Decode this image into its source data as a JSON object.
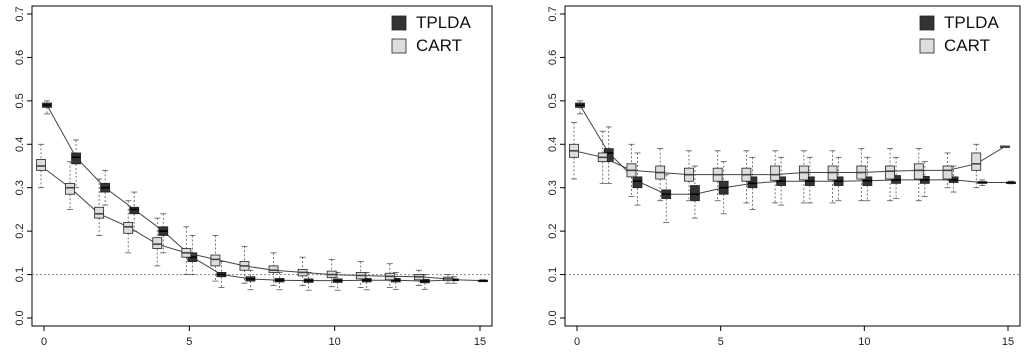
{
  "colors": {
    "tplda": "#333333",
    "cart": "#dddddd",
    "line": "#444444",
    "reference": "#888888"
  },
  "chart_data": [
    {
      "type": "boxplot",
      "title": "",
      "xlabel": "",
      "ylabel": "",
      "xlim": [
        0,
        15
      ],
      "ylim": [
        0,
        0.7
      ],
      "x_ticks": [
        "0",
        "5",
        "10",
        "15"
      ],
      "y_ticks": [
        "0.0",
        "0.1",
        "0.2",
        "0.3",
        "0.4",
        "0.5",
        "0.6",
        "0.7"
      ],
      "reference_line_y": 0.1,
      "grid": false,
      "legend": {
        "position": "top-right",
        "entries": [
          "TPLDA",
          "CART"
        ]
      },
      "series": [
        {
          "name": "TPLDA",
          "x": [
            0,
            1,
            2,
            3,
            4,
            5,
            6,
            7,
            8,
            9,
            10,
            11,
            12,
            13,
            14,
            15
          ],
          "median": [
            0.49,
            0.37,
            0.3,
            0.25,
            0.2,
            0.14,
            0.1,
            0.09,
            0.087,
            0.086,
            0.086,
            0.087,
            0.087,
            0.085,
            0.088,
            0.086
          ],
          "q1": [
            0.485,
            0.355,
            0.29,
            0.24,
            0.19,
            0.13,
            0.095,
            0.085,
            0.083,
            0.082,
            0.082,
            0.083,
            0.083,
            0.081,
            0.086,
            0.085
          ],
          "q3": [
            0.495,
            0.38,
            0.31,
            0.255,
            0.21,
            0.15,
            0.105,
            0.095,
            0.091,
            0.09,
            0.09,
            0.091,
            0.091,
            0.089,
            0.09,
            0.087
          ],
          "min": [
            0.47,
            0.3,
            0.26,
            0.2,
            0.15,
            0.1,
            0.07,
            0.065,
            0.065,
            0.064,
            0.064,
            0.065,
            0.066,
            0.066,
            0.08,
            0.085
          ],
          "max": [
            0.5,
            0.41,
            0.34,
            0.29,
            0.24,
            0.19,
            0.13,
            0.11,
            0.105,
            0.105,
            0.105,
            0.105,
            0.105,
            0.1,
            0.095,
            0.088
          ]
        },
        {
          "name": "CART",
          "x": [
            0,
            1,
            2,
            3,
            4,
            5,
            6,
            7,
            8,
            9,
            10,
            11,
            12,
            13,
            14
          ],
          "median": [
            0.35,
            0.3,
            0.24,
            0.21,
            0.17,
            0.15,
            0.135,
            0.12,
            0.11,
            0.105,
            0.1,
            0.098,
            0.096,
            0.095,
            0.09
          ],
          "q1": [
            0.34,
            0.285,
            0.23,
            0.195,
            0.16,
            0.14,
            0.12,
            0.11,
            0.105,
            0.097,
            0.093,
            0.09,
            0.088,
            0.088,
            0.086
          ],
          "q3": [
            0.365,
            0.31,
            0.255,
            0.22,
            0.185,
            0.16,
            0.145,
            0.13,
            0.12,
            0.112,
            0.108,
            0.105,
            0.103,
            0.1,
            0.094
          ],
          "min": [
            0.3,
            0.25,
            0.19,
            0.15,
            0.12,
            0.1,
            0.085,
            0.08,
            0.075,
            0.075,
            0.072,
            0.07,
            0.07,
            0.075,
            0.08
          ],
          "max": [
            0.4,
            0.36,
            0.32,
            0.27,
            0.23,
            0.21,
            0.19,
            0.165,
            0.15,
            0.14,
            0.135,
            0.13,
            0.125,
            0.11,
            0.1
          ]
        }
      ]
    },
    {
      "type": "boxplot",
      "title": "",
      "xlabel": "",
      "ylabel": "",
      "xlim": [
        0,
        15
      ],
      "ylim": [
        0,
        0.7
      ],
      "x_ticks": [
        "0",
        "5",
        "10",
        "15"
      ],
      "y_ticks": [
        "0.0",
        "0.1",
        "0.2",
        "0.3",
        "0.4",
        "0.5",
        "0.6",
        "0.7"
      ],
      "reference_line_y": 0.1,
      "grid": false,
      "legend": {
        "position": "top-right",
        "entries": [
          "TPLDA",
          "CART"
        ]
      },
      "series": [
        {
          "name": "TPLDA",
          "x": [
            0,
            1,
            2,
            3,
            4,
            5,
            6,
            7,
            8,
            9,
            10,
            11,
            12,
            13,
            14,
            15
          ],
          "median": [
            0.49,
            0.38,
            0.315,
            0.285,
            0.285,
            0.3,
            0.31,
            0.315,
            0.315,
            0.315,
            0.316,
            0.318,
            0.318,
            0.318,
            0.312,
            0.312
          ],
          "q1": [
            0.485,
            0.36,
            0.3,
            0.275,
            0.27,
            0.285,
            0.3,
            0.305,
            0.305,
            0.305,
            0.305,
            0.31,
            0.31,
            0.312,
            0.31,
            0.311
          ],
          "q3": [
            0.495,
            0.39,
            0.325,
            0.295,
            0.305,
            0.315,
            0.325,
            0.325,
            0.325,
            0.325,
            0.325,
            0.328,
            0.326,
            0.325,
            0.314,
            0.313
          ],
          "min": [
            0.47,
            0.31,
            0.26,
            0.22,
            0.23,
            0.24,
            0.25,
            0.26,
            0.265,
            0.27,
            0.27,
            0.275,
            0.28,
            0.29,
            0.305,
            0.309
          ],
          "max": [
            0.5,
            0.44,
            0.38,
            0.33,
            0.35,
            0.36,
            0.37,
            0.37,
            0.37,
            0.37,
            0.37,
            0.37,
            0.36,
            0.35,
            0.318,
            0.315
          ]
        },
        {
          "name": "CART",
          "x": [
            0,
            1,
            2,
            3,
            4,
            5,
            6,
            7,
            8,
            9,
            10,
            11,
            12,
            13,
            14,
            15
          ],
          "median": [
            0.385,
            0.37,
            0.34,
            0.335,
            0.33,
            0.33,
            0.33,
            0.33,
            0.335,
            0.335,
            0.335,
            0.338,
            0.34,
            0.34,
            0.355,
            0.395
          ],
          "q1": [
            0.37,
            0.36,
            0.325,
            0.32,
            0.315,
            0.315,
            0.315,
            0.317,
            0.318,
            0.318,
            0.32,
            0.32,
            0.32,
            0.32,
            0.34,
            0.394
          ],
          "q3": [
            0.4,
            0.38,
            0.355,
            0.35,
            0.345,
            0.345,
            0.345,
            0.35,
            0.35,
            0.35,
            0.35,
            0.35,
            0.355,
            0.35,
            0.38,
            0.396
          ],
          "min": [
            0.32,
            0.31,
            0.28,
            0.27,
            0.27,
            0.27,
            0.265,
            0.265,
            0.265,
            0.265,
            0.27,
            0.27,
            0.27,
            0.3,
            0.3,
            0.394
          ],
          "max": [
            0.45,
            0.43,
            0.4,
            0.39,
            0.385,
            0.385,
            0.385,
            0.385,
            0.385,
            0.385,
            0.39,
            0.39,
            0.39,
            0.38,
            0.4,
            0.396
          ]
        }
      ]
    }
  ]
}
